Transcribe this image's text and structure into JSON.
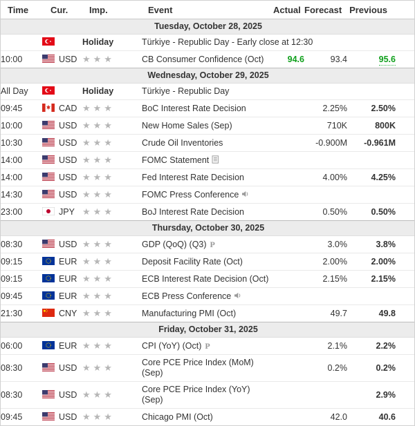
{
  "header": {
    "time": "Time",
    "currency": "Cur.",
    "importance": "Imp.",
    "event": "Event",
    "actual": "Actual",
    "forecast": "Forecast",
    "previous": "Previous"
  },
  "ui": {
    "preliminary_label": "P",
    "star_glyph": "★★★"
  },
  "icons": {
    "report": "report-icon",
    "speech": "speaker-icon",
    "preliminary": "preliminary-icon",
    "stars": "importance-stars-icon"
  },
  "colors": {
    "positive_green": "#10a01c",
    "star_gray": "#b6b6b6",
    "date_band_bg": "#ececec"
  },
  "groups": [
    {
      "date": "Tuesday, October 28, 2025",
      "rows": [
        {
          "time": "",
          "flag": "turkey",
          "currency": "",
          "holiday": "Holiday",
          "event": "Türkiye - Republic Day - Early close at 12:30"
        },
        {
          "time": "10:00",
          "flag": "usa",
          "currency": "USD",
          "stars": 3,
          "event": "CB Consumer Confidence (Oct)",
          "actual": "94.6",
          "actual_green": true,
          "forecast": "93.4",
          "previous": "95.6",
          "previous_green": true,
          "previous_revised": true
        }
      ]
    },
    {
      "date": "Wednesday, October 29, 2025",
      "rows": [
        {
          "time": "All Day",
          "flag": "turkey",
          "currency": "",
          "holiday": "Holiday",
          "event": "Türkiye - Republic Day"
        },
        {
          "time": "09:45",
          "flag": "canada",
          "currency": "CAD",
          "stars": 3,
          "event": "BoC Interest Rate Decision",
          "forecast": "2.25%",
          "previous": "2.50%"
        },
        {
          "time": "10:00",
          "flag": "usa",
          "currency": "USD",
          "stars": 3,
          "event": "New Home Sales (Sep)",
          "forecast": "710K",
          "previous": "800K"
        },
        {
          "time": "10:30",
          "flag": "usa",
          "currency": "USD",
          "stars": 3,
          "event": "Crude Oil Inventories",
          "forecast": "-0.900M",
          "previous": "-0.961M"
        },
        {
          "time": "14:00",
          "flag": "usa",
          "currency": "USD",
          "stars": 3,
          "event": "FOMC Statement",
          "marker": "report"
        },
        {
          "time": "14:00",
          "flag": "usa",
          "currency": "USD",
          "stars": 3,
          "event": "Fed Interest Rate Decision",
          "forecast": "4.00%",
          "previous": "4.25%"
        },
        {
          "time": "14:30",
          "flag": "usa",
          "currency": "USD",
          "stars": 3,
          "event": "FOMC Press Conference",
          "marker": "speech"
        },
        {
          "time": "23:00",
          "flag": "japan",
          "currency": "JPY",
          "stars": 3,
          "event": "BoJ Interest Rate Decision",
          "forecast": "0.50%",
          "previous": "0.50%"
        }
      ]
    },
    {
      "date": "Thursday, October 30, 2025",
      "rows": [
        {
          "time": "08:30",
          "flag": "usa",
          "currency": "USD",
          "stars": 3,
          "event": "GDP (QoQ) (Q3)",
          "marker": "preliminary",
          "forecast": "3.0%",
          "previous": "3.8%"
        },
        {
          "time": "09:15",
          "flag": "eu",
          "currency": "EUR",
          "stars": 3,
          "event": "Deposit Facility Rate (Oct)",
          "forecast": "2.00%",
          "previous": "2.00%"
        },
        {
          "time": "09:15",
          "flag": "eu",
          "currency": "EUR",
          "stars": 3,
          "event": "ECB Interest Rate Decision (Oct)",
          "forecast": "2.15%",
          "previous": "2.15%"
        },
        {
          "time": "09:45",
          "flag": "eu",
          "currency": "EUR",
          "stars": 3,
          "event": "ECB Press Conference",
          "marker": "speech"
        },
        {
          "time": "21:30",
          "flag": "china",
          "currency": "CNY",
          "stars": 3,
          "event": "Manufacturing PMI (Oct)",
          "forecast": "49.7",
          "previous": "49.8"
        }
      ]
    },
    {
      "date": "Friday, October 31, 2025",
      "rows": [
        {
          "time": "06:00",
          "flag": "eu",
          "currency": "EUR",
          "stars": 3,
          "event": "CPI (YoY) (Oct)",
          "marker": "preliminary",
          "forecast": "2.1%",
          "previous": "2.2%"
        },
        {
          "time": "08:30",
          "flag": "usa",
          "currency": "USD",
          "stars": 3,
          "event": "Core PCE Price Index (MoM) (Sep)",
          "forecast": "0.2%",
          "previous": "0.2%"
        },
        {
          "time": "08:30",
          "flag": "usa",
          "currency": "USD",
          "stars": 3,
          "event": "Core PCE Price Index (YoY) (Sep)",
          "previous": "2.9%"
        },
        {
          "time": "09:45",
          "flag": "usa",
          "currency": "USD",
          "stars": 3,
          "event": "Chicago PMI (Oct)",
          "forecast": "42.0",
          "previous": "40.6"
        }
      ]
    }
  ]
}
